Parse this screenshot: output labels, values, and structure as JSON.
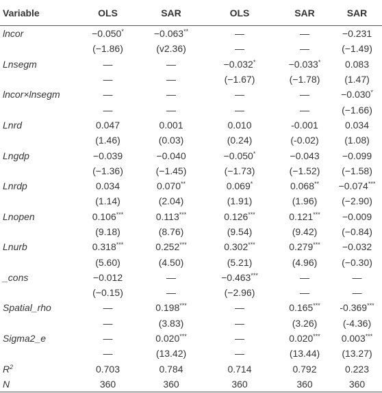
{
  "table": {
    "header": [
      "Variable",
      "OLS",
      "SAR",
      "OLS",
      "SAR",
      "SAR"
    ],
    "rows": [
      {
        "variable": "lncor",
        "coef": [
          {
            "text": "−0.050",
            "sup": "*"
          },
          {
            "text": "−0.063",
            "sup": "**"
          },
          "—",
          "—",
          "−0.231"
        ],
        "t": [
          "(−1.86)",
          "(v2.36)",
          "—",
          "—",
          "(−1.49)"
        ]
      },
      {
        "variable": "Lnsegm",
        "coef": [
          "—",
          "—",
          {
            "text": "−0.032",
            "sup": "*"
          },
          {
            "text": "−0.033",
            "sup": "*"
          },
          "0.083"
        ],
        "t": [
          "—",
          "—",
          "(−1.67)",
          "(−1.78)",
          "(1.47)"
        ]
      },
      {
        "variable": "lncor×lnsegm",
        "coef": [
          "—",
          "—",
          "—",
          "—",
          {
            "text": "−0.030",
            "sup": "*"
          }
        ],
        "t": [
          "—",
          "—",
          "—",
          "—",
          "(−1.66)"
        ]
      },
      {
        "variable": "Lnrd",
        "coef": [
          "0.047",
          "0.001",
          "0.010",
          "-0.001",
          "0.034"
        ],
        "t": [
          "(1.46)",
          "(0.03)",
          "(0.24)",
          "(-0.02)",
          "(1.08)"
        ]
      },
      {
        "variable": "Lngdp",
        "coef": [
          "−0.039",
          "−0.040",
          {
            "text": "−0.050",
            "sup": "*"
          },
          "−0.043",
          "−0.099"
        ],
        "t": [
          "(−1.36)",
          "(−1.45)",
          "(−1.73)",
          "(−1.52)",
          "(−1.58)"
        ]
      },
      {
        "variable": "Lnrdp",
        "coef": [
          "0.034",
          {
            "text": "0.070",
            "sup": "**"
          },
          {
            "text": "0.069",
            "sup": "*"
          },
          {
            "text": "0.068",
            "sup": "**"
          },
          {
            "text": "−0.074",
            "sup": "***"
          }
        ],
        "t": [
          "(1.14)",
          "(2.04)",
          "(1.91)",
          "(1.96)",
          "(−2.90)"
        ]
      },
      {
        "variable": "Lnopen",
        "coef": [
          {
            "text": "0.106",
            "sup": "***"
          },
          {
            "text": "0.113",
            "sup": "***"
          },
          {
            "text": "0.126",
            "sup": "***"
          },
          {
            "text": "0.121",
            "sup": "***"
          },
          "−0.009"
        ],
        "t": [
          "(9.18)",
          "(8.76)",
          "(9.54)",
          "(9.42)",
          "(−0.84)"
        ]
      },
      {
        "variable": "Lnurb",
        "coef": [
          {
            "text": "0.318",
            "sup": "***"
          },
          {
            "text": "0.252",
            "sup": "***"
          },
          {
            "text": "0.302",
            "sup": "***"
          },
          {
            "text": "0.279",
            "sup": "***"
          },
          "−0.032"
        ],
        "t": [
          "(5.60)",
          "(4.50)",
          "(5.21)",
          "(4.96)",
          "(−0.30)"
        ]
      },
      {
        "variable": "_cons",
        "coef": [
          "−0.012",
          "—",
          {
            "text": "−0.463",
            "sup": "***"
          },
          "—",
          "—"
        ],
        "t": [
          "(−0.15)",
          "—",
          "(−2.96)",
          "—",
          "—"
        ]
      },
      {
        "variable": "Spatial_rho",
        "coef": [
          "—",
          {
            "text": "0.198",
            "sup": "***"
          },
          "—",
          {
            "text": "0.165",
            "sup": "***"
          },
          {
            "text": "-0.369",
            "sup": "***"
          }
        ],
        "t": [
          "—",
          "(3.83)",
          "—",
          "(3.26)",
          "(-4.36)"
        ]
      },
      {
        "variable": "Sigma2_e",
        "coef": [
          "—",
          {
            "text": "0.020",
            "sup": "***"
          },
          "—",
          {
            "text": "0.020",
            "sup": "***"
          },
          {
            "text": "0.003",
            "sup": "***"
          }
        ],
        "t": [
          "—",
          "(13.42)",
          "—",
          "(13.44)",
          "(13.27)"
        ]
      },
      {
        "variable": {
          "text": "R",
          "sup": "2"
        },
        "coef": [
          "0.703",
          "0.784",
          "0.714",
          "0.792",
          "0.223"
        ]
      },
      {
        "variable": "N",
        "coef": [
          "360",
          "360",
          "360",
          "360",
          "360"
        ]
      }
    ]
  }
}
